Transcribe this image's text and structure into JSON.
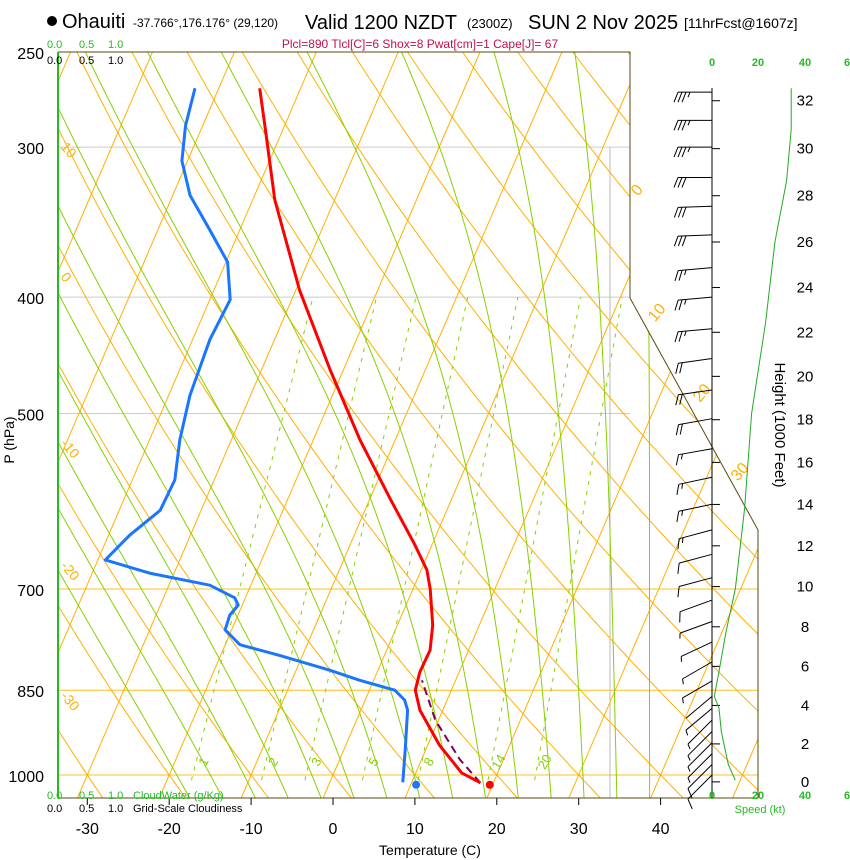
{
  "header": {
    "station": "Ohauiti",
    "coords": "-37.766°,176.176° (29,120)",
    "valid": "Valid 1200 NZDT",
    "utc": "(2300Z)",
    "date": "SUN 2 Nov 2025",
    "forecast": "[11hrFcst@1607z]",
    "indices": "Plcl=890 Tlcl[C]=6 Shox=8 Pwat[cm]=1 Cape[J]= 67"
  },
  "colors": {
    "temp": "#ff0000",
    "dewpoint": "#1a75ff",
    "parcel": "#800060",
    "isotherm": "#ffb000",
    "moist": "#88d000",
    "mixing": "#88d000",
    "speed": "#22aa22",
    "indices": "#c0104f"
  },
  "chart_data": {
    "type": "skew-t",
    "xlabel": "Temperature (C)",
    "ylabel": "P (hPa)",
    "right_label": "Height (1000 Feet)",
    "pressure_ticks": [
      250,
      300,
      400,
      500,
      700,
      850,
      1000
    ],
    "pressure_tick_labels": [
      "250",
      "300",
      "400",
      "500",
      "700",
      "850",
      "1000"
    ],
    "temp_ticks": [
      -30,
      -20,
      -10,
      0,
      10,
      20,
      30,
      40
    ],
    "temp_tick_labels": [
      "-30",
      "-20",
      "-10",
      "0",
      "10",
      "20",
      "30",
      "40"
    ],
    "height_ticks_kft": [
      0,
      2,
      4,
      6,
      8,
      10,
      12,
      14,
      16,
      18,
      20,
      22,
      24,
      26,
      28,
      30,
      32
    ],
    "height_tick_labels": [
      "0",
      "2",
      "4",
      "6",
      "8",
      "10",
      "12",
      "14",
      "16",
      "18",
      "20",
      "22",
      "24",
      "26",
      "28",
      "30",
      "32"
    ],
    "isotherm_labels_left": [
      {
        "t": "10",
        "p": 300
      },
      {
        "t": "0",
        "p": 385
      },
      {
        "t": "-10",
        "p": 530
      },
      {
        "t": "-20",
        "p": 670
      },
      {
        "t": "-30",
        "p": 860
      }
    ],
    "isotherm_labels_right": [
      {
        "t": "0",
        "p": 330
      },
      {
        "t": "10",
        "p": 420
      },
      {
        "t": "20",
        "p": 490
      },
      {
        "t": "30",
        "p": 570
      }
    ],
    "mixing_ratio_gkg": [
      1,
      2,
      3,
      5,
      8,
      14,
      20
    ],
    "mixing_ratio_labels": [
      "1",
      "2",
      "3",
      "5",
      "8",
      "14",
      "20"
    ],
    "temperature": [
      [
        1015,
        18.4
      ],
      [
        996,
        15.6
      ],
      [
        944,
        11.4
      ],
      [
        883,
        7.2
      ],
      [
        850,
        5.6
      ],
      [
        821,
        5.2
      ],
      [
        787,
        5.3
      ],
      [
        750,
        4.3
      ],
      [
        700,
        2.1
      ],
      [
        675,
        0.7
      ],
      [
        643,
        -2.1
      ],
      [
        590,
        -7.4
      ],
      [
        526,
        -14.3
      ],
      [
        460,
        -21.6
      ],
      [
        395,
        -29.5
      ],
      [
        332,
        -37.3
      ],
      [
        288,
        -42.4
      ],
      [
        268,
        -45.0
      ]
    ],
    "dewpoint": [
      [
        1014,
        8.9
      ],
      [
        953,
        7.5
      ],
      [
        883,
        5.7
      ],
      [
        866,
        4.8
      ],
      [
        850,
        3.1
      ],
      [
        834,
        -1.7
      ],
      [
        818,
        -5.9
      ],
      [
        795,
        -12.8
      ],
      [
        779,
        -18.2
      ],
      [
        757,
        -20.8
      ],
      [
        736,
        -21.0
      ],
      [
        722,
        -20.5
      ],
      [
        712,
        -21.3
      ],
      [
        695,
        -25.0
      ],
      [
        679,
        -33.0
      ],
      [
        662,
        -39.1
      ],
      [
        631,
        -37.4
      ],
      [
        602,
        -35.0
      ],
      [
        568,
        -34.8
      ],
      [
        526,
        -36.3
      ],
      [
        483,
        -37.4
      ],
      [
        434,
        -37.9
      ],
      [
        402,
        -37.5
      ],
      [
        374,
        -39.8
      ],
      [
        352,
        -43.6
      ],
      [
        329,
        -47.9
      ],
      [
        308,
        -50.7
      ],
      [
        288,
        -52.1
      ],
      [
        268,
        -52.9
      ]
    ],
    "parcel": [
      [
        1015,
        18.4
      ],
      [
        971,
        14.7
      ],
      [
        900,
        9.6
      ],
      [
        834,
        5.9
      ]
    ],
    "surface_temp": 19.5,
    "surface_dewpoint": 10.5,
    "surface_pressure": 1013,
    "wind_barbs": [
      [
        270,
        270,
        35
      ],
      [
        285,
        270,
        35
      ],
      [
        300,
        270,
        34
      ],
      [
        318,
        270,
        32
      ],
      [
        336,
        268,
        30
      ],
      [
        355,
        268,
        28
      ],
      [
        378,
        265,
        27
      ],
      [
        400,
        265,
        25
      ],
      [
        425,
        265,
        23
      ],
      [
        450,
        262,
        21
      ],
      [
        478,
        262,
        19
      ],
      [
        505,
        260,
        18
      ],
      [
        535,
        260,
        17
      ],
      [
        565,
        258,
        16
      ],
      [
        595,
        258,
        15
      ],
      [
        625,
        255,
        14
      ],
      [
        655,
        255,
        12
      ],
      [
        685,
        255,
        10
      ],
      [
        715,
        250,
        8
      ],
      [
        745,
        250,
        6
      ],
      [
        775,
        245,
        5
      ],
      [
        805,
        240,
        4
      ],
      [
        835,
        240,
        3
      ],
      [
        860,
        230,
        2
      ],
      [
        880,
        230,
        3
      ],
      [
        900,
        225,
        4
      ],
      [
        920,
        225,
        5
      ],
      [
        940,
        225,
        6
      ],
      [
        960,
        225,
        7
      ],
      [
        980,
        225,
        8
      ],
      [
        1000,
        225,
        9
      ]
    ],
    "speed_profile": [
      [
        1010,
        10
      ],
      [
        980,
        7
      ],
      [
        920,
        4
      ],
      [
        880,
        3
      ],
      [
        860,
        1
      ],
      [
        820,
        3
      ],
      [
        760,
        6
      ],
      [
        700,
        10
      ],
      [
        600,
        14
      ],
      [
        500,
        17
      ],
      [
        420,
        23
      ],
      [
        360,
        27
      ],
      [
        320,
        32
      ],
      [
        290,
        34
      ],
      [
        268,
        34
      ]
    ],
    "speed_axis_labels": [
      "0",
      "20",
      "40",
      "6"
    ],
    "speed_label": "Speed (kt)",
    "cloud_axis_labels": [
      "0.0",
      "0.5",
      "1.0"
    ],
    "cloudwater_label": "CloudWater (g/Kg)",
    "cloudiness_label": "Grid-Scale Cloudiness"
  }
}
